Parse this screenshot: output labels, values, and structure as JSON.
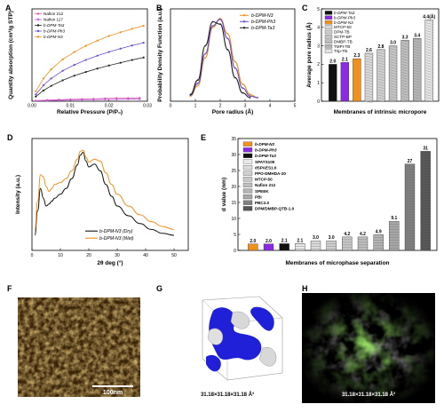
{
  "panels": {
    "A": "A",
    "B": "B",
    "C": "C",
    "D": "D",
    "E": "E",
    "F": "F",
    "G": "G",
    "H": "H"
  },
  "chart_data": [
    {
      "id": "A",
      "type": "line",
      "xlabel": "Relative Pressure (P/P₀)",
      "ylabel": "Quantity absorption (cm³/g STP)",
      "xlim": [
        0,
        0.03
      ],
      "ylim": [
        0,
        30
      ],
      "xticks": [
        "0.00",
        "0.01",
        "0.02",
        "0.03"
      ],
      "legend_position": "top-left",
      "series": [
        {
          "name": "Nafion 212",
          "color": "#e05ab0",
          "marker": "circle",
          "x": [
            0.001,
            0.004,
            0.007,
            0.01,
            0.013,
            0.016,
            0.019,
            0.022,
            0.025,
            0.028
          ],
          "y": [
            0.2,
            0.4,
            0.5,
            0.6,
            0.7,
            0.8,
            0.9,
            1.0,
            1.0,
            1.1
          ]
        },
        {
          "name": "Nafion 117",
          "color": "#c25ad8",
          "marker": "circle",
          "x": [
            0.001,
            0.004,
            0.007,
            0.01,
            0.013,
            0.016,
            0.019,
            0.022,
            0.025,
            0.028
          ],
          "y": [
            0.1,
            0.2,
            0.3,
            0.4,
            0.5,
            0.5,
            0.6,
            0.6,
            0.7,
            0.7
          ]
        },
        {
          "name": "b-DPM-Ta3",
          "color": "#222222",
          "marker": "circle",
          "x": [
            0.001,
            0.003,
            0.005,
            0.008,
            0.011,
            0.014,
            0.017,
            0.02,
            0.023,
            0.026,
            0.029
          ],
          "y": [
            1.5,
            3.5,
            5.0,
            6.8,
            8.3,
            9.5,
            10.6,
            11.6,
            12.5,
            13.4,
            14.2
          ]
        },
        {
          "name": "b-DPM-Ph3",
          "color": "#6a4cc9",
          "marker": "circle",
          "x": [
            0.001,
            0.003,
            0.005,
            0.008,
            0.011,
            0.014,
            0.017,
            0.02,
            0.023,
            0.026,
            0.029
          ],
          "y": [
            2.2,
            5.2,
            7.4,
            9.9,
            11.8,
            13.4,
            14.8,
            16.0,
            17.1,
            18.1,
            19.0
          ]
        },
        {
          "name": "b-DPM-N3",
          "color": "#f0901e",
          "marker": "circle",
          "x": [
            0.001,
            0.003,
            0.005,
            0.008,
            0.011,
            0.014,
            0.017,
            0.02,
            0.023,
            0.026,
            0.029
          ],
          "y": [
            3.2,
            7.4,
            10.4,
            13.6,
            16.0,
            18.0,
            19.7,
            21.2,
            22.4,
            23.5,
            24.5
          ]
        }
      ]
    },
    {
      "id": "B",
      "type": "line",
      "xlabel": "Pore radius (Å)",
      "ylabel": "Probability Density Function (a.u.)",
      "xlim": [
        0,
        5
      ],
      "xticks": [
        "0",
        "1",
        "2",
        "3",
        "4",
        "5"
      ],
      "legend_position": "top-right",
      "series": [
        {
          "name": "b-DPM-N3",
          "color": "#f0901e",
          "x": [
            0.8,
            1.1,
            1.4,
            1.7,
            2.0,
            2.3,
            2.6,
            2.9,
            3.2,
            3.5
          ],
          "y": [
            0.02,
            0.15,
            0.5,
            0.88,
            0.99,
            0.8,
            0.45,
            0.17,
            0.04,
            0.0
          ]
        },
        {
          "name": "b-DPM-Ph3",
          "color": "#6a4cc9",
          "x": [
            0.8,
            1.1,
            1.4,
            1.7,
            2.0,
            2.3,
            2.6,
            2.9,
            3.2,
            3.5
          ],
          "y": [
            0.03,
            0.18,
            0.55,
            0.9,
            0.98,
            0.74,
            0.37,
            0.12,
            0.02,
            0.0
          ]
        },
        {
          "name": "b-DPM-Ta3",
          "color": "#222222",
          "x": [
            0.8,
            1.1,
            1.4,
            1.7,
            2.0,
            2.3,
            2.6,
            2.9,
            3.2
          ],
          "y": [
            0.04,
            0.22,
            0.65,
            0.95,
            0.92,
            0.6,
            0.25,
            0.06,
            0.0
          ]
        }
      ]
    },
    {
      "id": "C",
      "type": "bar",
      "xlabel": "Membranes of intrinsic micropore",
      "ylabel": "Average pore radius (Å)",
      "ylim": [
        0,
        5
      ],
      "yticks": [
        "0",
        "1",
        "2",
        "3",
        "4",
        "5"
      ],
      "legend_position": "top-left",
      "categories": [
        "b-DPM-Ta3",
        "b-DPM-Ph3",
        "b-DPM-N3",
        "MTCP-50",
        "DPM-TB",
        "SCTP-BP",
        "DMBP-TB",
        "TMPI-TB",
        "Trip-TB"
      ],
      "values": [
        2.0,
        2.1,
        2.3,
        2.6,
        2.8,
        3.0,
        3.3,
        3.4,
        4.4
      ],
      "labels": [
        "2.0",
        "2.1",
        "2.3",
        "2.6",
        "2.8",
        "3.0",
        "3.3",
        "3.4",
        "4.4(Å)"
      ],
      "colors": [
        "#111111",
        "#8a2be2",
        "#f0901e",
        "#d8d8d8",
        "#cfcfcf",
        "#c4c4c4",
        "#bdbdbd",
        "#b5b5b5",
        "#e4e4e4"
      ]
    },
    {
      "id": "D",
      "type": "line",
      "xlabel": "2θ deg (°)",
      "ylabel": "Intensity (a.u.)",
      "xlim": [
        0,
        55
      ],
      "xticks": [
        "0",
        "10",
        "20",
        "30",
        "40",
        "50"
      ],
      "legend_position": "bottom-center",
      "series": [
        {
          "name": "b-DPM-N3 (Dry)",
          "color": "#111111",
          "x": [
            1,
            2,
            3,
            4,
            5,
            6,
            7,
            8,
            10,
            12,
            14,
            16,
            17,
            18,
            19,
            20,
            22,
            24,
            26,
            28,
            30,
            34,
            38,
            42,
            46,
            50
          ],
          "y": [
            0.1,
            0.35,
            0.58,
            0.48,
            0.4,
            0.42,
            0.45,
            0.48,
            0.52,
            0.58,
            0.68,
            0.82,
            0.92,
            0.95,
            0.86,
            0.8,
            0.83,
            0.76,
            0.62,
            0.5,
            0.4,
            0.3,
            0.22,
            0.16,
            0.12,
            0.1
          ]
        },
        {
          "name": "b-DPM-N3 (Wet)",
          "color": "#f0901e",
          "x": [
            1,
            2,
            3,
            4,
            5,
            6,
            7,
            8,
            10,
            12,
            14,
            16,
            17,
            18,
            19,
            20,
            22,
            24,
            26,
            28,
            30,
            34,
            38,
            42,
            46,
            50
          ],
          "y": [
            0.15,
            0.45,
            0.72,
            0.7,
            0.6,
            0.55,
            0.58,
            0.62,
            0.64,
            0.68,
            0.76,
            0.88,
            0.96,
            0.97,
            0.9,
            0.85,
            0.88,
            0.86,
            0.74,
            0.62,
            0.52,
            0.4,
            0.31,
            0.24,
            0.19,
            0.16
          ]
        }
      ]
    },
    {
      "id": "E",
      "type": "bar",
      "xlabel": "Membranes of microphase separation",
      "ylabel": "d value (nm)",
      "ylim": [
        0,
        35
      ],
      "yticks": [
        "0",
        "5",
        "10",
        "15",
        "20",
        "25",
        "30",
        "35"
      ],
      "legend_position": "top-left",
      "categories": [
        "b-DPM-N3",
        "b-DPM-Ph3",
        "b-DPM-Ta3",
        "SPATS100",
        "dSPAES1.6",
        "PPO-DMHDA-20",
        "MTCP-50",
        "Nafion 212",
        "SPEEK",
        "PBI",
        "PBC2.0",
        "DPM/DMBP-QTB-1.0"
      ],
      "values": [
        2.0,
        2.0,
        2.1,
        2.1,
        3.0,
        3.0,
        4.2,
        4.2,
        4.9,
        9.1,
        27,
        31
      ],
      "labels": [
        "2.0",
        "2.0",
        "2.1",
        "2.1",
        "3.0",
        "3.0",
        "4.2",
        "4.2",
        "4.9",
        "9.1",
        "27",
        "31"
      ],
      "colors": [
        "#f0901e",
        "#8a2be2",
        "#111111",
        "#e8e8e8",
        "#dcdcdc",
        "#d0d0d0",
        "#c8c8c8",
        "#bfbfbf",
        "#b4b4b4",
        "#a8a8a8",
        "#808080",
        "#555555"
      ]
    }
  ],
  "images": {
    "F": {
      "scalebar": "100nm"
    },
    "G": {
      "caption": "31.18×31.18×31.18 Å³"
    },
    "H": {
      "caption": "31.18×31.18×31.18 Å³"
    }
  }
}
